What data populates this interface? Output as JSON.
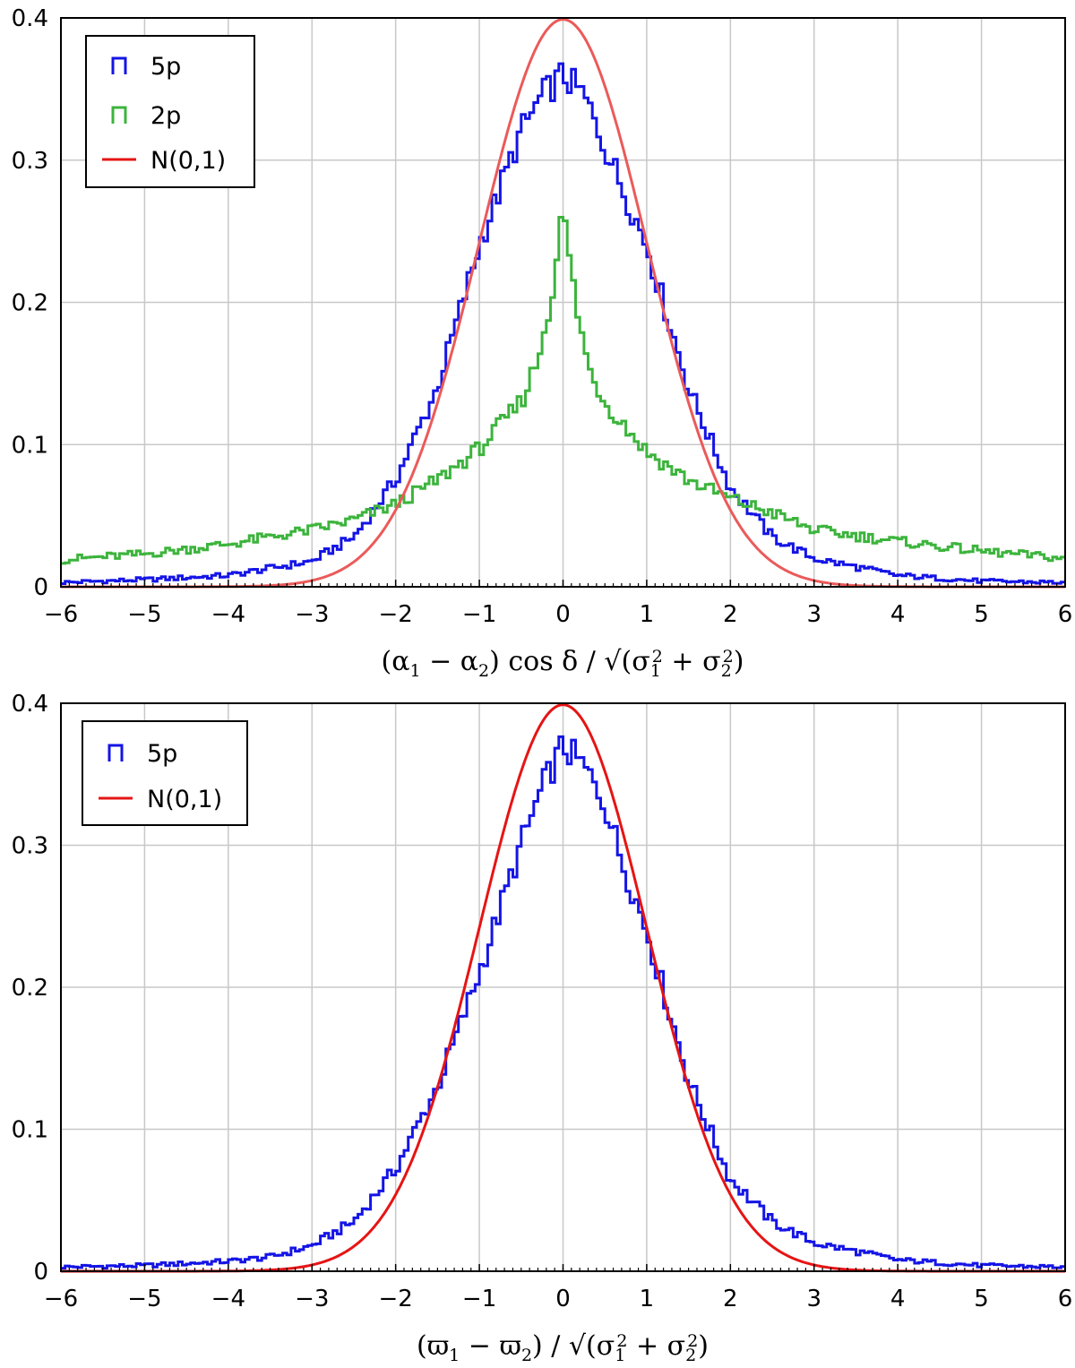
{
  "colors": {
    "5p": "#1414e6",
    "2p": "#3cb43c",
    "gauss_top": "#eb5a5a",
    "gauss_bottom": "#e61414",
    "grid": "#c8c8c8"
  },
  "chart_data": [
    {
      "type": "line",
      "subtype": "step-histogram",
      "xlabel_parts": [
        "(α",
        "1",
        " − α",
        "2",
        ") cos δ / √(σ",
        "1",
        "2",
        " + σ",
        "2",
        "2",
        ")"
      ],
      "xlim": [
        -6,
        6
      ],
      "ylim": [
        0,
        0.4
      ],
      "xticks": [
        "−6",
        "−5",
        "−4",
        "−3",
        "−2",
        "−1",
        "0",
        "1",
        "2",
        "3",
        "4",
        "5",
        "6"
      ],
      "yticks": [
        "0",
        "0.1",
        "0.2",
        "0.3",
        "0.4"
      ],
      "grid": true,
      "legend_position": "top-left",
      "legend": [
        "5p",
        "2p",
        "N(0,1)"
      ],
      "series": [
        {
          "name": "5p",
          "style": "step",
          "x": [
            -6,
            -5,
            -4,
            -3,
            -2.5,
            -2,
            -1.5,
            -1,
            -0.5,
            -0.25,
            0,
            0.25,
            0.5,
            1,
            1.5,
            2,
            2.5,
            3,
            4,
            5,
            6
          ],
          "values": [
            0.003,
            0.005,
            0.008,
            0.018,
            0.035,
            0.075,
            0.14,
            0.24,
            0.32,
            0.345,
            0.36,
            0.345,
            0.31,
            0.24,
            0.14,
            0.07,
            0.035,
            0.02,
            0.008,
            0.004,
            0.003
          ]
        },
        {
          "name": "2p",
          "style": "step",
          "x": [
            -6,
            -5,
            -4,
            -3,
            -2.5,
            -2,
            -1.5,
            -1,
            -0.5,
            -0.3,
            -0.15,
            0,
            0.15,
            0.3,
            0.5,
            1,
            1.5,
            2,
            2.5,
            3,
            4,
            5,
            6
          ],
          "values": [
            0.019,
            0.023,
            0.03,
            0.04,
            0.047,
            0.058,
            0.075,
            0.097,
            0.13,
            0.16,
            0.2,
            0.265,
            0.2,
            0.155,
            0.13,
            0.095,
            0.075,
            0.062,
            0.052,
            0.04,
            0.032,
            0.025,
            0.02
          ]
        },
        {
          "name": "N(0,1)",
          "style": "smooth",
          "function": "standard normal pdf"
        }
      ]
    },
    {
      "type": "line",
      "subtype": "step-histogram",
      "xlabel_parts": [
        "(ϖ",
        "1",
        " − ϖ",
        "2",
        ") / √(σ",
        "1",
        "2",
        " + σ",
        "2",
        "2",
        ")"
      ],
      "xlim": [
        -6,
        6
      ],
      "ylim": [
        0,
        0.4
      ],
      "xticks": [
        "−6",
        "−5",
        "−4",
        "−3",
        "−2",
        "−1",
        "0",
        "1",
        "2",
        "3",
        "4",
        "5",
        "6"
      ],
      "yticks": [
        "0",
        "0.1",
        "0.2",
        "0.3",
        "0.4"
      ],
      "grid": true,
      "legend_position": "top-left",
      "legend": [
        "5p",
        "N(0,1)"
      ],
      "series": [
        {
          "name": "5p",
          "style": "step",
          "x": [
            -6,
            -5,
            -4,
            -3.5,
            -3,
            -2.5,
            -2,
            -1.5,
            -1,
            -0.5,
            -0.25,
            0,
            0.25,
            0.5,
            0.7,
            1,
            1.5,
            2,
            2.5,
            3,
            4,
            5,
            6
          ],
          "values": [
            0.003,
            0.004,
            0.007,
            0.01,
            0.018,
            0.035,
            0.072,
            0.13,
            0.21,
            0.3,
            0.34,
            0.37,
            0.355,
            0.33,
            0.29,
            0.24,
            0.135,
            0.065,
            0.035,
            0.02,
            0.008,
            0.004,
            0.003
          ]
        },
        {
          "name": "N(0,1)",
          "style": "smooth",
          "function": "standard normal pdf"
        }
      ]
    }
  ]
}
